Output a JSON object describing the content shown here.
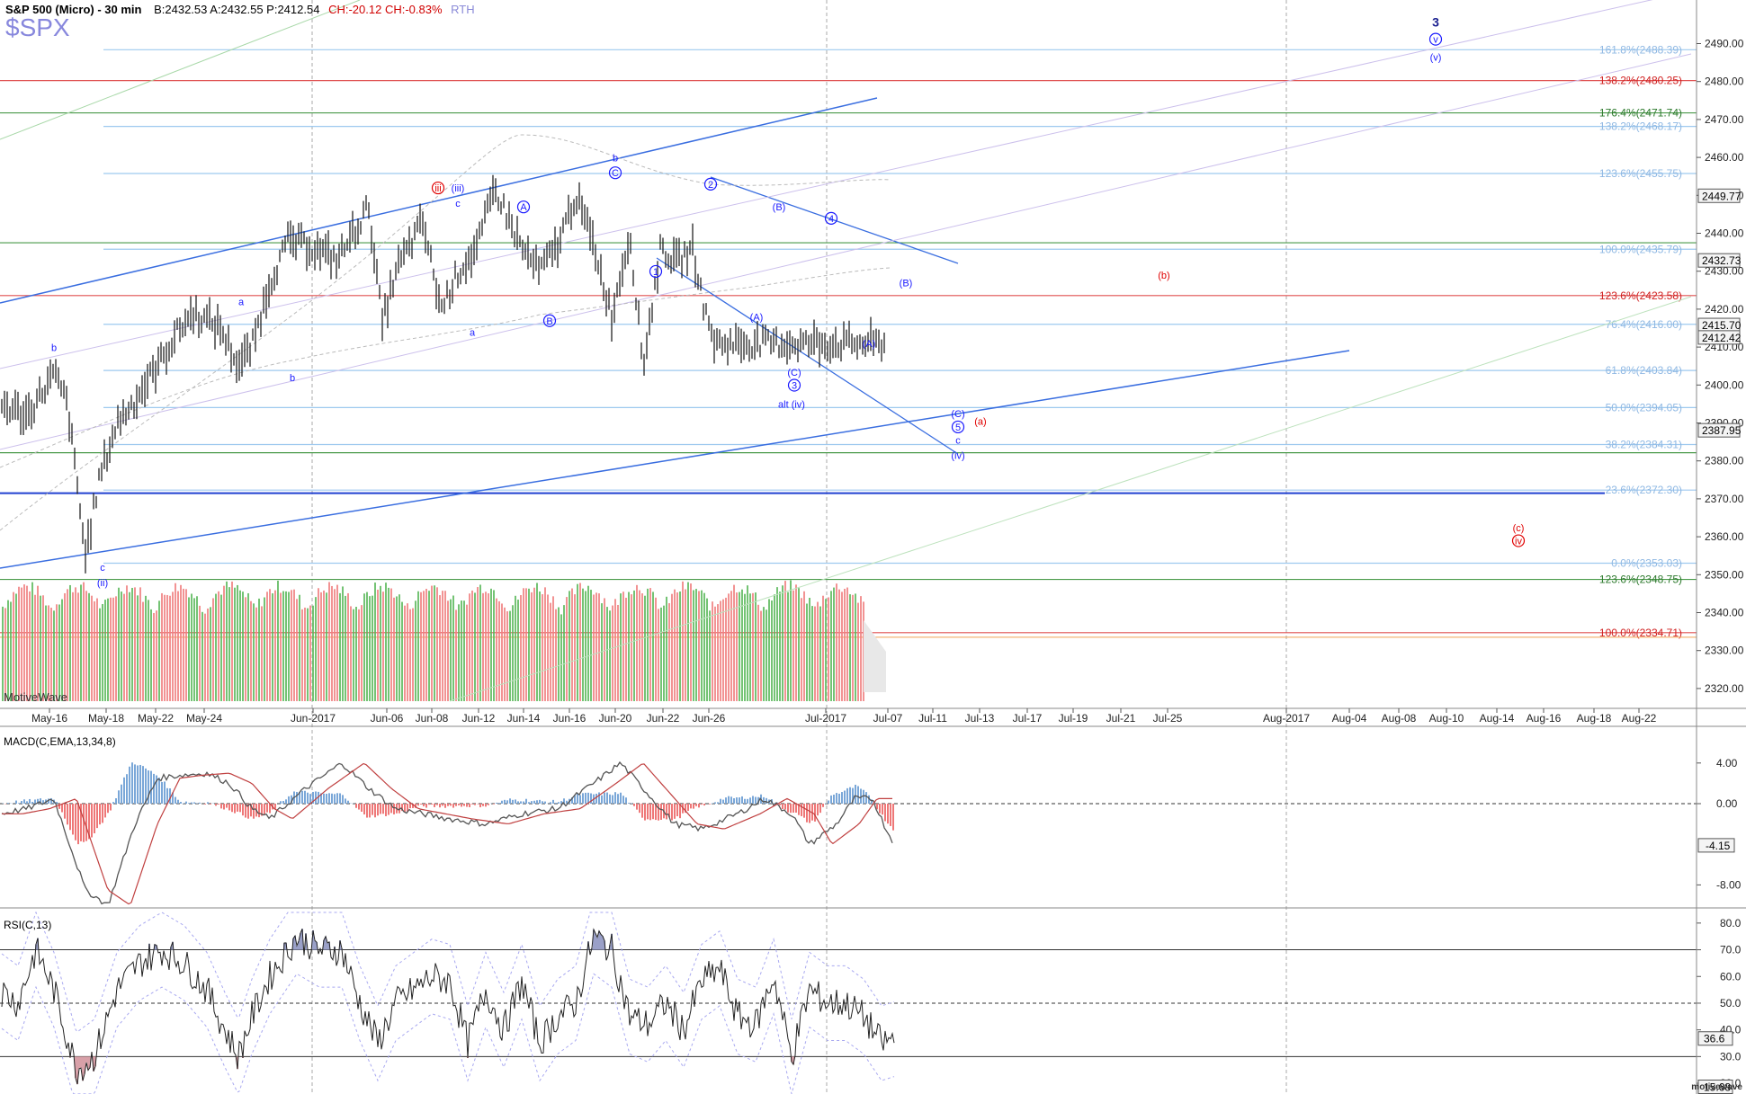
{
  "header": {
    "title": "S&P 500 (Micro) - 30 min",
    "quote": "B:2432.53  A:2432.55  P:2412.54",
    "change": "CH:-20.12  CH:-0.83%",
    "session": "RTH",
    "symbol": "$SPX"
  },
  "watermark": "MotiveWave",
  "brand": "motivewave",
  "colors": {
    "bull": "#5cb85c",
    "bear": "#f08080",
    "wave_blue": "#1a1aff",
    "wave_red": "#e00000",
    "fib_blue": "#9ec9ef",
    "fib_red": "#e05050",
    "fib_green": "#4a9a4a"
  },
  "chart_data": [
    {
      "type": "line",
      "name": "price",
      "ylim": [
        2310,
        2500
      ],
      "y_ticks": [
        2320,
        2330,
        2340,
        2350,
        2360,
        2370,
        2380,
        2390,
        2400,
        2410,
        2420,
        2430,
        2440,
        2450,
        2460,
        2470,
        2480,
        2490
      ],
      "x_ticks": [
        "May-16",
        "May-18",
        "May-22",
        "May-24",
        "Jun-2017",
        "Jun-06",
        "Jun-08",
        "Jun-12",
        "Jun-14",
        "Jun-16",
        "Jun-20",
        "Jun-22",
        "Jun-26",
        "Jul-2017",
        "Jul-07",
        "Jul-11",
        "Jul-13",
        "Jul-17",
        "Jul-19",
        "Jul-21",
        "Jul-25",
        "Aug-2017",
        "Aug-04",
        "Aug-08",
        "Aug-10",
        "Aug-14",
        "Aug-16",
        "Aug-18",
        "Aug-22"
      ],
      "price_anchors": [
        [
          0,
          2395
        ],
        [
          30,
          2392
        ],
        [
          60,
          2403
        ],
        [
          75,
          2395
        ],
        [
          95,
          2355
        ],
        [
          110,
          2375
        ],
        [
          130,
          2390
        ],
        [
          150,
          2396
        ],
        [
          175,
          2405
        ],
        [
          200,
          2415
        ],
        [
          215,
          2419
        ],
        [
          245,
          2415
        ],
        [
          265,
          2405
        ],
        [
          280,
          2410
        ],
        [
          300,
          2427
        ],
        [
          320,
          2438
        ],
        [
          340,
          2437
        ],
        [
          375,
          2433
        ],
        [
          410,
          2447
        ],
        [
          425,
          2416
        ],
        [
          440,
          2430
        ],
        [
          470,
          2443
        ],
        [
          490,
          2420
        ],
        [
          510,
          2430
        ],
        [
          530,
          2436
        ],
        [
          550,
          2452
        ],
        [
          580,
          2436
        ],
        [
          600,
          2430
        ],
        [
          620,
          2437
        ],
        [
          640,
          2450
        ],
        [
          660,
          2437
        ],
        [
          680,
          2418
        ],
        [
          700,
          2440
        ],
        [
          715,
          2405
        ],
        [
          735,
          2437
        ],
        [
          750,
          2432
        ],
        [
          770,
          2436
        ],
        [
          785,
          2418
        ],
        [
          795,
          2411
        ]
      ],
      "current_price": "2412.54",
      "price_tags": [
        "2449.77",
        "2432.73",
        "2415.70",
        "2412.42",
        "2387.95"
      ],
      "fib_levels": [
        {
          "label": "161.8%(2488.39)",
          "value": 2488.39,
          "color": "blue"
        },
        {
          "label": "138.2%(2480.25)",
          "value": 2480.25,
          "color": "red"
        },
        {
          "label": "176.4%(2471.74)",
          "value": 2471.74,
          "color": "green"
        },
        {
          "label": "138.2%(2468.17)",
          "value": 2468.17,
          "color": "blue"
        },
        {
          "label": "123.6%(2455.75)",
          "value": 2455.75,
          "color": "blue"
        },
        {
          "label": "",
          "value": 2437.5,
          "color": "green"
        },
        {
          "label": "100.0%(2435.79)",
          "value": 2435.79,
          "color": "blue"
        },
        {
          "label": "123.6%(2423.58)",
          "value": 2423.58,
          "color": "red"
        },
        {
          "label": "76.4%(2416.00)",
          "value": 2416.0,
          "color": "blue"
        },
        {
          "label": "61.8%(2403.84)",
          "value": 2403.84,
          "color": "blue"
        },
        {
          "label": "50.0%(2394.05)",
          "value": 2394.05,
          "color": "blue"
        },
        {
          "label": "38.2%(2384.31)",
          "value": 2384.31,
          "color": "blue"
        },
        {
          "label": "",
          "value": 2382.15,
          "color": "green"
        },
        {
          "label": "23.6%(2372.30)",
          "value": 2372.3,
          "color": "blue"
        },
        {
          "label": "0.0%(2353.03)",
          "value": 2353.03,
          "color": "blue"
        },
        {
          "label": "123.6%(2348.75)",
          "value": 2348.75,
          "color": "green"
        },
        {
          "label": "100.0%(2334.71)",
          "value": 2334.71,
          "color": "red"
        }
      ],
      "wave_labels": [
        {
          "text": "3",
          "x": 1596,
          "price": 2494.5,
          "color": "navy",
          "bold": true
        },
        {
          "text": "v",
          "x": 1596,
          "price": 2490.2,
          "color": "blue",
          "circle": true
        },
        {
          "text": "(v)",
          "x": 1596,
          "price": 2485.5,
          "color": "blue"
        },
        {
          "text": "b",
          "x": 60,
          "price": 2409,
          "color": "blue"
        },
        {
          "text": "a",
          "x": 268,
          "price": 2421,
          "color": "blue"
        },
        {
          "text": "b",
          "x": 325,
          "price": 2401,
          "color": "blue"
        },
        {
          "text": "iii",
          "x": 487,
          "price": 2451,
          "color": "red",
          "circle": true
        },
        {
          "text": "(iii)",
          "x": 509,
          "price": 2451,
          "color": "blue"
        },
        {
          "text": "c",
          "x": 509,
          "price": 2447,
          "color": "blue"
        },
        {
          "text": "a",
          "x": 525,
          "price": 2413,
          "color": "blue"
        },
        {
          "text": "A",
          "x": 582,
          "price": 2446,
          "color": "blue",
          "circle": true
        },
        {
          "text": "B",
          "x": 611,
          "price": 2416,
          "color": "blue",
          "circle": true
        },
        {
          "text": "b",
          "x": 684,
          "price": 2459,
          "color": "blue"
        },
        {
          "text": "C",
          "x": 684,
          "price": 2455,
          "color": "blue",
          "circle": true
        },
        {
          "text": "2",
          "x": 790,
          "price": 2452,
          "color": "blue",
          "circle": true
        },
        {
          "text": "1",
          "x": 729,
          "price": 2429,
          "color": "blue",
          "circle": true
        },
        {
          "text": "(B)",
          "x": 866,
          "price": 2446,
          "color": "blue"
        },
        {
          "text": "4",
          "x": 924,
          "price": 2443,
          "color": "blue",
          "circle": true
        },
        {
          "text": "(A)",
          "x": 841,
          "price": 2417,
          "color": "blue"
        },
        {
          "text": "(B)",
          "x": 1007,
          "price": 2426,
          "color": "blue"
        },
        {
          "text": "(A)",
          "x": 966,
          "price": 2410,
          "color": "blue"
        },
        {
          "text": "(C)",
          "x": 883,
          "price": 2402.5,
          "color": "blue"
        },
        {
          "text": "3",
          "x": 883,
          "price": 2399,
          "color": "blue",
          "circle": true
        },
        {
          "text": "alt (iv)",
          "x": 880,
          "price": 2394,
          "color": "blue"
        },
        {
          "text": "(b)",
          "x": 1294,
          "price": 2428,
          "color": "red"
        },
        {
          "text": "(C)",
          "x": 1065,
          "price": 2391.5,
          "color": "blue"
        },
        {
          "text": "5",
          "x": 1065,
          "price": 2388,
          "color": "blue",
          "circle": true
        },
        {
          "text": "(a)",
          "x": 1090,
          "price": 2389.5,
          "color": "red"
        },
        {
          "text": "c",
          "x": 1065,
          "price": 2384.5,
          "color": "blue"
        },
        {
          "text": "(iv)",
          "x": 1065,
          "price": 2380.5,
          "color": "blue"
        },
        {
          "text": "(c)",
          "x": 1688,
          "price": 2361.5,
          "color": "red"
        },
        {
          "text": "iv",
          "x": 1688,
          "price": 2358,
          "color": "red",
          "circle": true
        },
        {
          "text": "c",
          "x": 114,
          "price": 2351,
          "color": "blue"
        },
        {
          "text": "(ii)",
          "x": 114,
          "price": 2347,
          "color": "blue"
        }
      ]
    },
    {
      "type": "area",
      "name": "volume",
      "description_x_range": [
        0,
        960
      ]
    },
    {
      "type": "line",
      "name": "MACD",
      "label": "MACD(C,EMA,13,34,8)",
      "ylim": [
        -11.5,
        8.5
      ],
      "y_ticks": [
        "4.00",
        "0.00",
        "-8.00"
      ],
      "current_value": "-4.15",
      "macd_anchors": [
        [
          0,
          -1
        ],
        [
          30,
          -0.5
        ],
        [
          60,
          0.5
        ],
        [
          95,
          -8.5
        ],
        [
          120,
          -10
        ],
        [
          150,
          -2
        ],
        [
          175,
          2.5
        ],
        [
          200,
          2.8
        ],
        [
          230,
          3
        ],
        [
          255,
          2
        ],
        [
          280,
          -0.5
        ],
        [
          300,
          -1.5
        ],
        [
          340,
          1.5
        ],
        [
          380,
          4
        ],
        [
          410,
          1.5
        ],
        [
          440,
          -0.5
        ],
        [
          470,
          -1
        ],
        [
          500,
          -1.5
        ],
        [
          540,
          -2
        ],
        [
          580,
          -1
        ],
        [
          620,
          -0.5
        ],
        [
          660,
          2
        ],
        [
          690,
          4
        ],
        [
          720,
          1
        ],
        [
          750,
          -2
        ],
        [
          780,
          -2.5
        ],
        [
          820,
          -1
        ],
        [
          850,
          0.5
        ],
        [
          880,
          -1
        ],
        [
          900,
          -4
        ],
        [
          930,
          -2
        ],
        [
          950,
          0.5
        ],
        [
          970,
          0.5
        ],
        [
          985,
          -2.5
        ],
        [
          995,
          -4.15
        ]
      ]
    },
    {
      "type": "line",
      "name": "RSI",
      "label": "RSI(C,13)",
      "ylim": [
        18,
        85
      ],
      "y_ticks": [
        "80.0",
        "70.0",
        "60.0",
        "50.0",
        "40.0",
        "30.0",
        "20.0"
      ],
      "levels": [
        70,
        30
      ],
      "current_values": [
        "36.6",
        "15.68"
      ],
      "rsi_anchors": [
        [
          0,
          55
        ],
        [
          20,
          50
        ],
        [
          40,
          70
        ],
        [
          60,
          55
        ],
        [
          85,
          25
        ],
        [
          105,
          30
        ],
        [
          130,
          55
        ],
        [
          155,
          65
        ],
        [
          180,
          70
        ],
        [
          205,
          65
        ],
        [
          230,
          55
        ],
        [
          250,
          40
        ],
        [
          265,
          30
        ],
        [
          280,
          45
        ],
        [
          300,
          60
        ],
        [
          330,
          75
        ],
        [
          355,
          70
        ],
        [
          380,
          70
        ],
        [
          400,
          50
        ],
        [
          420,
          35
        ],
        [
          440,
          50
        ],
        [
          460,
          55
        ],
        [
          480,
          60
        ],
        [
          500,
          58
        ],
        [
          520,
          35
        ],
        [
          540,
          55
        ],
        [
          560,
          40
        ],
        [
          580,
          58
        ],
        [
          600,
          35
        ],
        [
          620,
          45
        ],
        [
          640,
          50
        ],
        [
          660,
          75
        ],
        [
          680,
          70
        ],
        [
          700,
          45
        ],
        [
          720,
          42
        ],
        [
          740,
          50
        ],
        [
          760,
          40
        ],
        [
          780,
          58
        ],
        [
          800,
          63
        ],
        [
          820,
          45
        ],
        [
          840,
          42
        ],
        [
          860,
          60
        ],
        [
          880,
          30
        ],
        [
          900,
          55
        ],
        [
          920,
          50
        ],
        [
          940,
          50
        ],
        [
          960,
          45
        ],
        [
          980,
          35
        ],
        [
          995,
          36.6
        ]
      ]
    }
  ]
}
